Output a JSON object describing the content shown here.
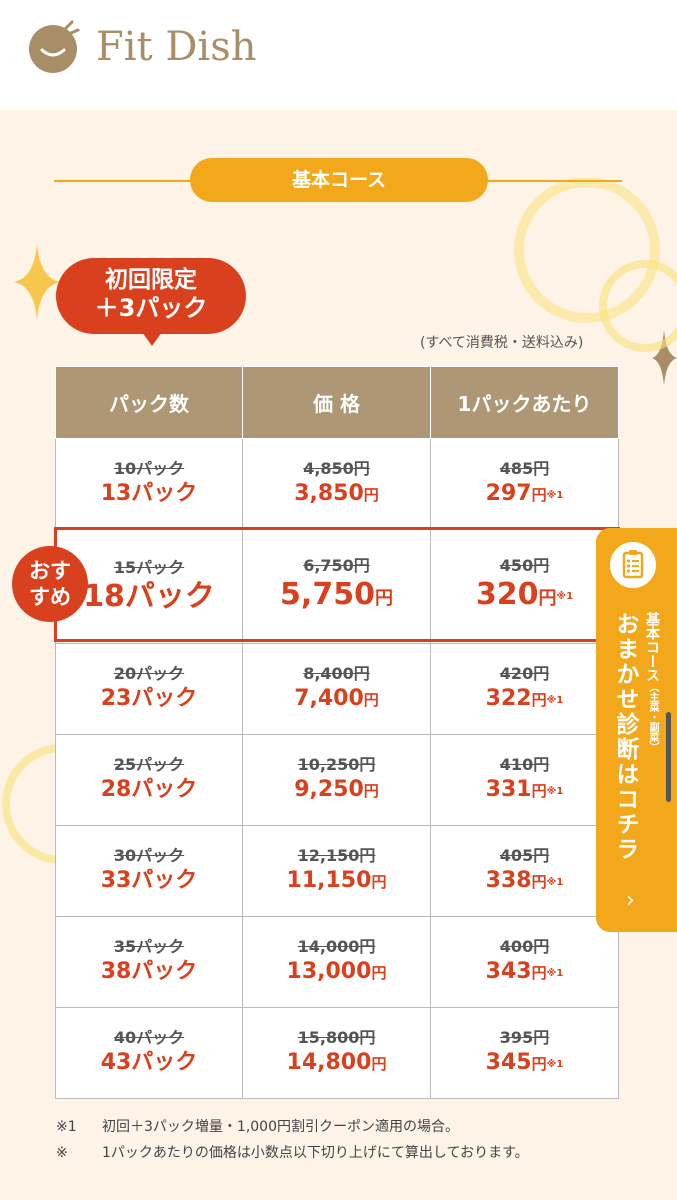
{
  "brand": {
    "name": "Fit Dish",
    "logo_icon": "smiling-face-logo-icon",
    "color": "#a88e66"
  },
  "section": {
    "course_label": "基本コース"
  },
  "promo": {
    "line1": "初回限定",
    "line2": "＋3パック"
  },
  "tax_note": "(すべて消費税・送料込み)",
  "table": {
    "headers": [
      "パック数",
      "価 格",
      "1パックあたり"
    ],
    "rows": [
      {
        "old_packs": "10パック",
        "new_packs": "13パック",
        "old_price": "4,850円",
        "new_price": "3,850",
        "old_unit": "485円",
        "new_unit": "297"
      },
      {
        "old_packs": "15パック",
        "new_packs": "18パック",
        "old_price": "6,750円",
        "new_price": "5,750",
        "old_unit": "450円",
        "new_unit": "320"
      },
      {
        "old_packs": "20パック",
        "new_packs": "23パック",
        "old_price": "8,400円",
        "new_price": "7,400",
        "old_unit": "420円",
        "new_unit": "322"
      },
      {
        "old_packs": "25パック",
        "new_packs": "28パック",
        "old_price": "10,250円",
        "new_price": "9,250",
        "old_unit": "410円",
        "new_unit": "331"
      },
      {
        "old_packs": "30パック",
        "new_packs": "33パック",
        "old_price": "12,150円",
        "new_price": "11,150",
        "old_unit": "405円",
        "new_unit": "338"
      },
      {
        "old_packs": "35パック",
        "new_packs": "38パック",
        "old_price": "14,000円",
        "new_price": "13,000",
        "old_unit": "400円",
        "new_unit": "343"
      },
      {
        "old_packs": "40パック",
        "new_packs": "43パック",
        "old_price": "15,800円",
        "new_price": "14,800",
        "old_unit": "395円",
        "new_unit": "345"
      }
    ],
    "yen": "円",
    "note_mark": "※1"
  },
  "recommend_badge": {
    "line1": "おす",
    "line2": "すめ"
  },
  "side_tab": {
    "small": "基本コース",
    "tiny": "（主菜・副菜）",
    "big": "おまかせ診断はコチラ",
    "icon": "clipboard-checklist-icon",
    "chevron": "›"
  },
  "footnotes": [
    {
      "mark": "※1",
      "text": "初回＋3パック増量・1,000円割引クーポン適用の場合。"
    },
    {
      "mark": "※",
      "text": "1パックあたりの価格は小数点以下切り上げにて算出しております。"
    }
  ],
  "colors": {
    "accent_orange": "#f3a81b",
    "accent_red": "#d9411e",
    "header_tan": "#ad9774",
    "background": "#fdf3e6"
  }
}
